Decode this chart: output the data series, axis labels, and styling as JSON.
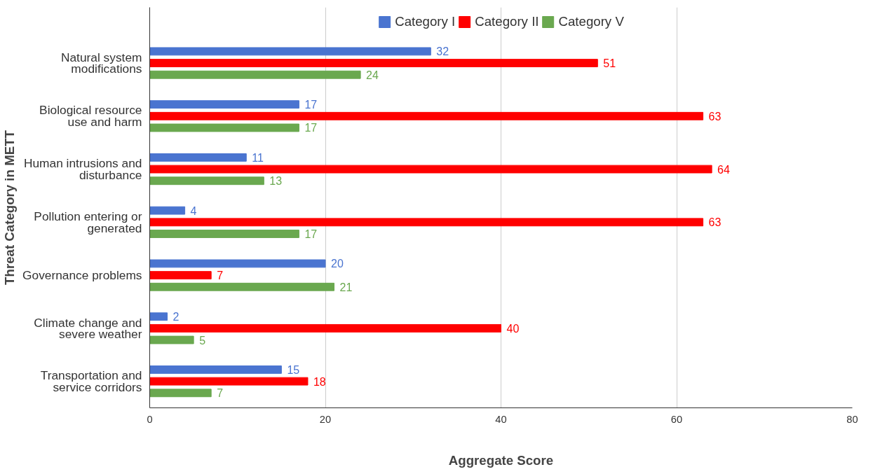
{
  "chart_data": {
    "type": "bar",
    "orientation": "horizontal",
    "xlabel": "Aggregate Score",
    "ylabel": "Threat Category in METT",
    "categories": [
      "Natural system modifications",
      "Biological resource use and harm",
      "Human intrusions and disturbance",
      "Pollution entering or generated",
      "Governance problems",
      "Climate change and severe weather",
      "Transportation and service corridors"
    ],
    "series": [
      {
        "name": "Category I",
        "color": "#4a74d0",
        "values": [
          32,
          17,
          11,
          4,
          20,
          2,
          15
        ]
      },
      {
        "name": "Category II",
        "color": "#ff0000",
        "values": [
          51,
          63,
          64,
          63,
          7,
          40,
          18
        ]
      },
      {
        "name": "Category V",
        "color": "#6aa84f",
        "values": [
          24,
          17,
          13,
          17,
          21,
          5,
          7
        ]
      }
    ],
    "xlim": [
      0,
      80
    ],
    "xticks": [
      0,
      20,
      40,
      60,
      80
    ],
    "grid": "x",
    "legend": "top",
    "data_labels": true
  }
}
